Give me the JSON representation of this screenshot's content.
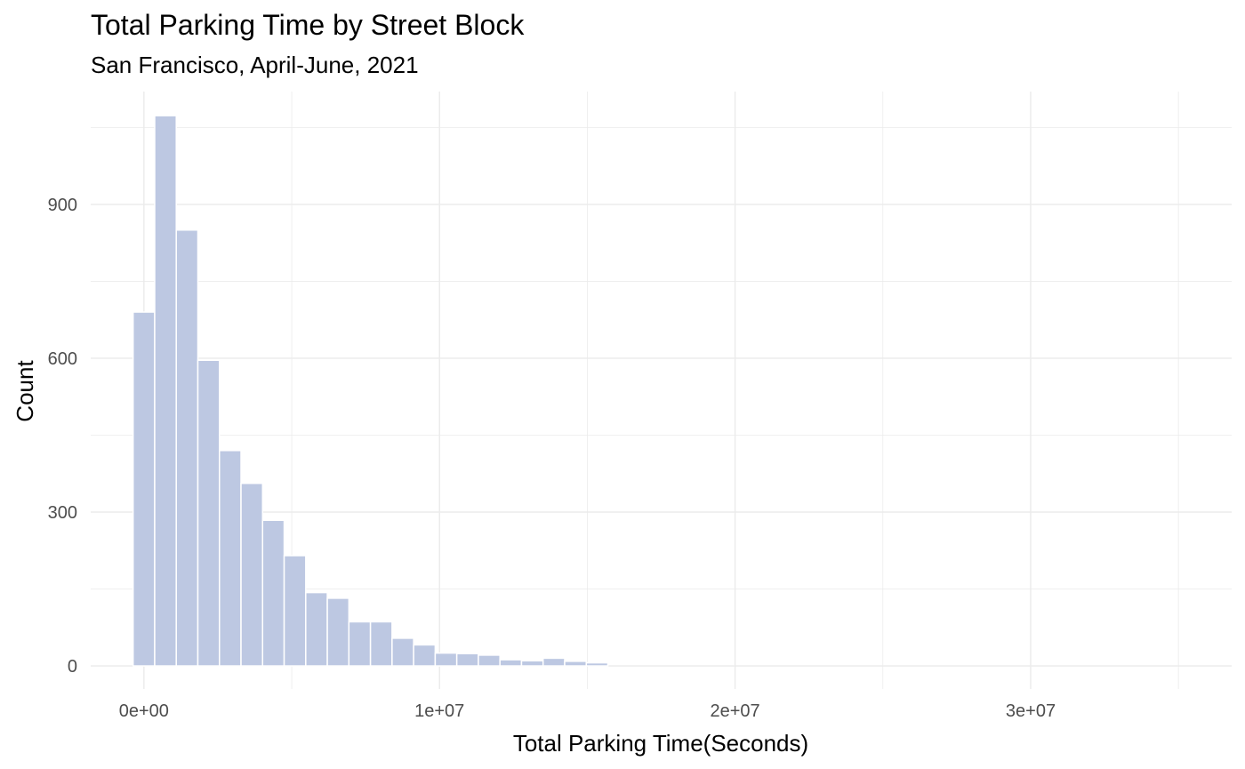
{
  "chart_data": {
    "type": "bar",
    "title": "Total Parking Time by Street Block",
    "subtitle": "San Francisco, April-June, 2021",
    "xlabel": "Total Parking Time(Seconds)",
    "ylabel": "Count",
    "bin_width": 730000,
    "bins_start": [
      -365000,
      365000,
      1095000,
      1825000,
      2555000,
      3285000,
      4015000,
      4745000,
      5475000,
      6205000,
      6935000,
      7665000,
      8395000,
      9125000,
      9855000,
      10585000,
      11315000,
      12045000,
      12775000,
      13505000,
      14235000,
      14965000
    ],
    "values": [
      690,
      1073,
      850,
      596,
      420,
      356,
      284,
      215,
      143,
      132,
      86,
      86,
      54,
      41,
      25,
      24,
      21,
      12,
      10,
      15,
      9,
      6
    ],
    "xlim": [
      -1800000,
      36800000
    ],
    "ylim": [
      -45,
      1120
    ],
    "x_ticks": [
      0,
      10000000,
      20000000,
      30000000
    ],
    "x_tick_labels": [
      "0e+00",
      "1e+07",
      "2e+07",
      "3e+07"
    ],
    "y_ticks": [
      0,
      300,
      600,
      900
    ],
    "y_tick_labels": [
      "0",
      "300",
      "600",
      "900"
    ],
    "grid": true,
    "bar_color": "#bdc8e2",
    "grid_color": "#ebebeb"
  }
}
